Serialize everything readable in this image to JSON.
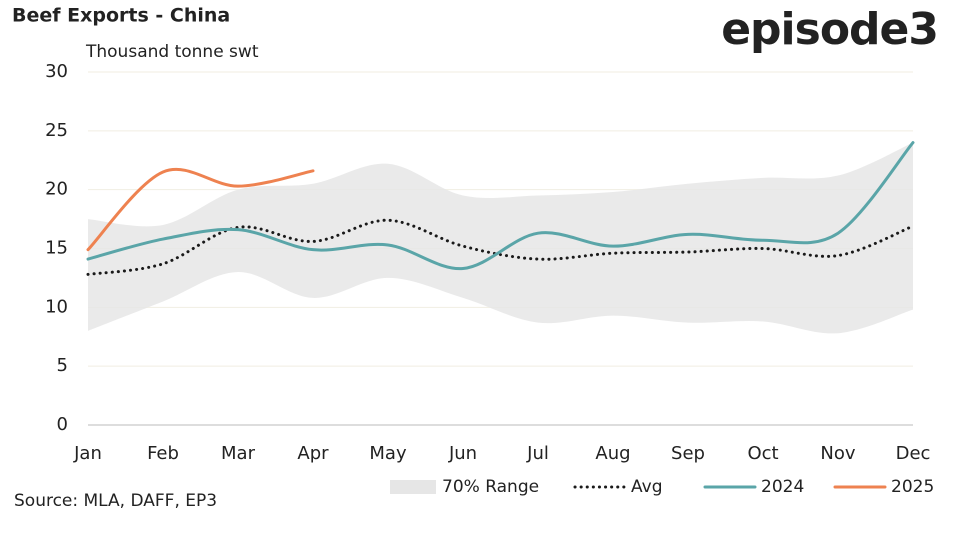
{
  "chart_data": {
    "type": "line",
    "title": "Beef Exports - China",
    "subtitle": "Thousand tonne swt",
    "brand": "episode3",
    "source": "Source: MLA, DAFF, EP3",
    "categories": [
      "Jan",
      "Feb",
      "Mar",
      "Apr",
      "May",
      "Jun",
      "Jul",
      "Aug",
      "Sep",
      "Oct",
      "Nov",
      "Dec"
    ],
    "ylim": [
      0,
      30
    ],
    "yticks": [
      0,
      5,
      10,
      15,
      20,
      25,
      30
    ],
    "grid": true,
    "legend": "bottom",
    "range": {
      "name": "70% Range",
      "color": "#e6e6e6",
      "upper": [
        17.5,
        17,
        20,
        20.5,
        22.2,
        19.5,
        19.5,
        19.8,
        20.5,
        21,
        21.2,
        24
      ],
      "lower": [
        8,
        10.5,
        13,
        10.8,
        12.5,
        10.8,
        8.7,
        9.3,
        8.7,
        8.8,
        7.8,
        9.8
      ]
    },
    "series": [
      {
        "name": "Avg",
        "color": "#1a1a1a",
        "dash": true,
        "values": [
          12.8,
          13.7,
          16.8,
          15.6,
          17.4,
          15.2,
          14.1,
          14.6,
          14.7,
          15,
          14.4,
          16.9
        ]
      },
      {
        "name": "2024",
        "color": "#5aa5a8",
        "values": [
          14.1,
          15.8,
          16.6,
          14.9,
          15.3,
          13.3,
          16.3,
          15.2,
          16.2,
          15.7,
          16.3,
          24
        ]
      },
      {
        "name": "2025",
        "color": "#ee8250",
        "values": [
          14.9,
          21.5,
          20.3,
          21.6,
          null,
          null,
          null,
          null,
          null,
          null,
          null,
          null
        ]
      }
    ]
  }
}
